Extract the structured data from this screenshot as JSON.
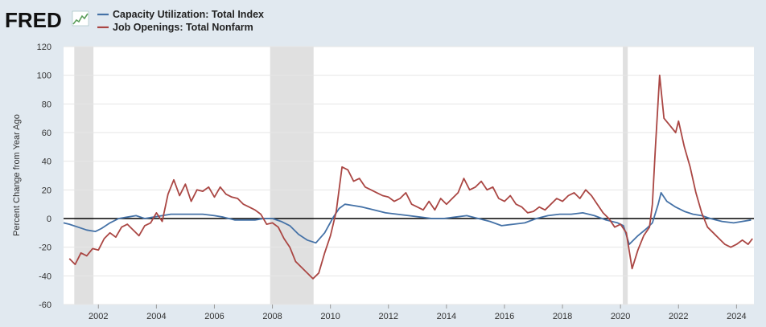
{
  "logo": {
    "text": "FRED"
  },
  "chart_data": {
    "type": "line",
    "title": "",
    "xlabel": "",
    "ylabel": "Percent Change from Year Ago",
    "xlim": [
      2000.8,
      2024.6
    ],
    "ylim": [
      -60,
      120
    ],
    "yticks": [
      -60,
      -40,
      -20,
      0,
      20,
      40,
      60,
      80,
      100,
      120
    ],
    "ytick_labels": [
      "-60",
      "-40",
      "-20",
      "0",
      "20",
      "40",
      "60",
      "80",
      "100",
      "120"
    ],
    "xticks": [
      2002,
      2004,
      2006,
      2008,
      2010,
      2012,
      2014,
      2016,
      2018,
      2020,
      2022,
      2024
    ],
    "xtick_labels": [
      "2002",
      "2004",
      "2006",
      "2008",
      "2010",
      "2012",
      "2014",
      "2016",
      "2018",
      "2020",
      "2022",
      "2024"
    ],
    "grid": "horizontal",
    "zero_line": true,
    "legend_position": "top-left",
    "recessions": [
      [
        2001.17,
        2001.83
      ],
      [
        2007.92,
        2009.42
      ],
      [
        2020.08,
        2020.25
      ]
    ],
    "series": [
      {
        "name": "Capacity Utilization: Total Index",
        "color": "#4572a7",
        "points": [
          [
            2000.8,
            -3
          ],
          [
            2001.0,
            -4
          ],
          [
            2001.3,
            -6
          ],
          [
            2001.6,
            -8
          ],
          [
            2001.9,
            -9
          ],
          [
            2002.1,
            -7
          ],
          [
            2002.4,
            -3
          ],
          [
            2002.7,
            0
          ],
          [
            2003.0,
            1
          ],
          [
            2003.3,
            2
          ],
          [
            2003.6,
            0
          ],
          [
            2003.9,
            1
          ],
          [
            2004.2,
            2
          ],
          [
            2004.5,
            3
          ],
          [
            2004.8,
            3
          ],
          [
            2005.2,
            3
          ],
          [
            2005.6,
            3
          ],
          [
            2006.0,
            2
          ],
          [
            2006.3,
            1
          ],
          [
            2006.7,
            -1
          ],
          [
            2007.0,
            -1
          ],
          [
            2007.4,
            -1
          ],
          [
            2007.7,
            0
          ],
          [
            2008.0,
            0
          ],
          [
            2008.3,
            -2
          ],
          [
            2008.6,
            -5
          ],
          [
            2008.9,
            -11
          ],
          [
            2009.2,
            -15
          ],
          [
            2009.5,
            -17
          ],
          [
            2009.8,
            -10
          ],
          [
            2010.1,
            1
          ],
          [
            2010.3,
            7
          ],
          [
            2010.5,
            10
          ],
          [
            2010.8,
            9
          ],
          [
            2011.1,
            8
          ],
          [
            2011.5,
            6
          ],
          [
            2011.9,
            4
          ],
          [
            2012.3,
            3
          ],
          [
            2012.7,
            2
          ],
          [
            2013.1,
            1
          ],
          [
            2013.5,
            0
          ],
          [
            2013.9,
            0
          ],
          [
            2014.3,
            1
          ],
          [
            2014.7,
            2
          ],
          [
            2015.1,
            0
          ],
          [
            2015.5,
            -2
          ],
          [
            2015.9,
            -5
          ],
          [
            2016.3,
            -4
          ],
          [
            2016.7,
            -3
          ],
          [
            2017.1,
            0
          ],
          [
            2017.5,
            2
          ],
          [
            2017.9,
            3
          ],
          [
            2018.3,
            3
          ],
          [
            2018.7,
            4
          ],
          [
            2019.1,
            2
          ],
          [
            2019.5,
            -1
          ],
          [
            2019.9,
            -3
          ],
          [
            2020.1,
            -5
          ],
          [
            2020.3,
            -18
          ],
          [
            2020.6,
            -12
          ],
          [
            2020.9,
            -7
          ],
          [
            2021.1,
            -3
          ],
          [
            2021.3,
            10
          ],
          [
            2021.4,
            18
          ],
          [
            2021.6,
            12
          ],
          [
            2021.9,
            8
          ],
          [
            2022.2,
            5
          ],
          [
            2022.5,
            3
          ],
          [
            2022.8,
            2
          ],
          [
            2023.1,
            0
          ],
          [
            2023.5,
            -2
          ],
          [
            2023.9,
            -3
          ],
          [
            2024.2,
            -2
          ],
          [
            2024.5,
            -1
          ]
        ]
      },
      {
        "name": "Job Openings: Total Nonfarm",
        "color": "#aa4643",
        "points": [
          [
            2001.0,
            -28
          ],
          [
            2001.2,
            -32
          ],
          [
            2001.4,
            -24
          ],
          [
            2001.6,
            -26
          ],
          [
            2001.8,
            -21
          ],
          [
            2002.0,
            -22
          ],
          [
            2002.2,
            -14
          ],
          [
            2002.4,
            -10
          ],
          [
            2002.6,
            -13
          ],
          [
            2002.8,
            -6
          ],
          [
            2003.0,
            -4
          ],
          [
            2003.2,
            -8
          ],
          [
            2003.4,
            -12
          ],
          [
            2003.6,
            -5
          ],
          [
            2003.8,
            -3
          ],
          [
            2004.0,
            4
          ],
          [
            2004.2,
            -2
          ],
          [
            2004.4,
            17
          ],
          [
            2004.6,
            27
          ],
          [
            2004.8,
            16
          ],
          [
            2005.0,
            24
          ],
          [
            2005.2,
            12
          ],
          [
            2005.4,
            20
          ],
          [
            2005.6,
            19
          ],
          [
            2005.8,
            22
          ],
          [
            2006.0,
            15
          ],
          [
            2006.2,
            22
          ],
          [
            2006.4,
            17
          ],
          [
            2006.6,
            15
          ],
          [
            2006.8,
            14
          ],
          [
            2007.0,
            10
          ],
          [
            2007.2,
            8
          ],
          [
            2007.4,
            6
          ],
          [
            2007.6,
            3
          ],
          [
            2007.8,
            -4
          ],
          [
            2008.0,
            -3
          ],
          [
            2008.2,
            -6
          ],
          [
            2008.4,
            -14
          ],
          [
            2008.6,
            -20
          ],
          [
            2008.8,
            -30
          ],
          [
            2009.0,
            -34
          ],
          [
            2009.2,
            -38
          ],
          [
            2009.4,
            -42
          ],
          [
            2009.6,
            -38
          ],
          [
            2009.8,
            -24
          ],
          [
            2010.0,
            -12
          ],
          [
            2010.2,
            5
          ],
          [
            2010.4,
            36
          ],
          [
            2010.6,
            34
          ],
          [
            2010.8,
            26
          ],
          [
            2011.0,
            28
          ],
          [
            2011.2,
            22
          ],
          [
            2011.4,
            20
          ],
          [
            2011.6,
            18
          ],
          [
            2011.8,
            16
          ],
          [
            2012.0,
            15
          ],
          [
            2012.2,
            12
          ],
          [
            2012.4,
            14
          ],
          [
            2012.6,
            18
          ],
          [
            2012.8,
            10
          ],
          [
            2013.0,
            8
          ],
          [
            2013.2,
            6
          ],
          [
            2013.4,
            12
          ],
          [
            2013.6,
            6
          ],
          [
            2013.8,
            14
          ],
          [
            2014.0,
            10
          ],
          [
            2014.2,
            14
          ],
          [
            2014.4,
            18
          ],
          [
            2014.6,
            28
          ],
          [
            2014.8,
            20
          ],
          [
            2015.0,
            22
          ],
          [
            2015.2,
            26
          ],
          [
            2015.4,
            20
          ],
          [
            2015.6,
            22
          ],
          [
            2015.8,
            14
          ],
          [
            2016.0,
            12
          ],
          [
            2016.2,
            16
          ],
          [
            2016.4,
            10
          ],
          [
            2016.6,
            8
          ],
          [
            2016.8,
            4
          ],
          [
            2017.0,
            5
          ],
          [
            2017.2,
            8
          ],
          [
            2017.4,
            6
          ],
          [
            2017.6,
            10
          ],
          [
            2017.8,
            14
          ],
          [
            2018.0,
            12
          ],
          [
            2018.2,
            16
          ],
          [
            2018.4,
            18
          ],
          [
            2018.6,
            14
          ],
          [
            2018.8,
            20
          ],
          [
            2019.0,
            16
          ],
          [
            2019.2,
            10
          ],
          [
            2019.4,
            4
          ],
          [
            2019.6,
            0
          ],
          [
            2019.8,
            -6
          ],
          [
            2020.0,
            -4
          ],
          [
            2020.2,
            -10
          ],
          [
            2020.4,
            -35
          ],
          [
            2020.6,
            -22
          ],
          [
            2020.8,
            -12
          ],
          [
            2021.0,
            -6
          ],
          [
            2021.1,
            10
          ],
          [
            2021.2,
            48
          ],
          [
            2021.35,
            100
          ],
          [
            2021.5,
            70
          ],
          [
            2021.7,
            65
          ],
          [
            2021.9,
            60
          ],
          [
            2022.0,
            68
          ],
          [
            2022.2,
            50
          ],
          [
            2022.4,
            36
          ],
          [
            2022.6,
            18
          ],
          [
            2022.8,
            4
          ],
          [
            2023.0,
            -6
          ],
          [
            2023.2,
            -10
          ],
          [
            2023.4,
            -14
          ],
          [
            2023.6,
            -18
          ],
          [
            2023.8,
            -20
          ],
          [
            2024.0,
            -18
          ],
          [
            2024.2,
            -15
          ],
          [
            2024.4,
            -18
          ],
          [
            2024.55,
            -14
          ]
        ]
      }
    ]
  }
}
